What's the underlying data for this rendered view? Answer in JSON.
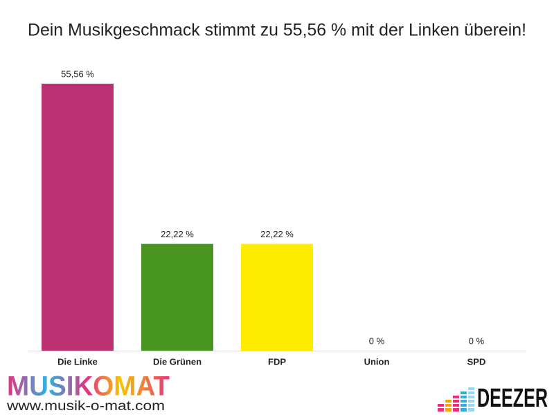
{
  "chart_data": {
    "type": "bar",
    "title": "Dein Musikgeschmack stimmt zu 55,56 % mit der Linken überein!",
    "categories": [
      "Die Linke",
      "Die Grünen",
      "FDP",
      "Union",
      "SPD"
    ],
    "values": [
      55.56,
      22.22,
      22.22,
      0,
      0
    ],
    "value_labels": [
      "55,56 %",
      "22,22 %",
      "22,22 %",
      "0 %",
      "0 %"
    ],
    "colors": [
      "#bb3172",
      "#48951f",
      "#ffed00",
      "#000000",
      "#e3000f"
    ]
  },
  "footer": {
    "brand": "MUSIKOMAT",
    "url": "www.musik-o-mat.com",
    "partner": "DEEZER"
  }
}
